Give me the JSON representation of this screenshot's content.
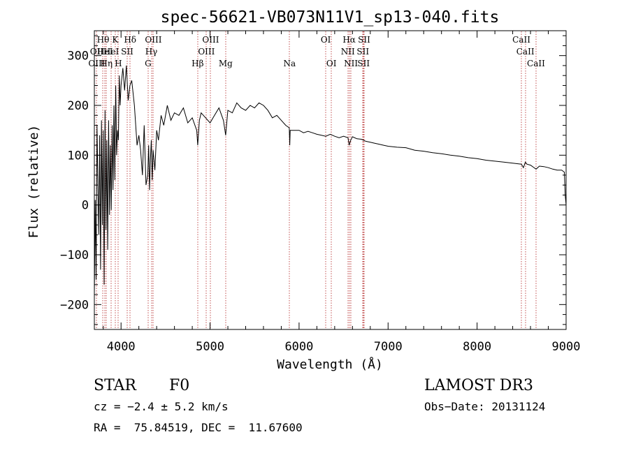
{
  "chart_data": {
    "type": "line",
    "title": "spec-56621-VB073N11V1_sp13-040.fits",
    "xlabel": "Wavelength (Å)",
    "ylabel": "Flux (relative)",
    "xlim": [
      3700,
      9000
    ],
    "ylim": [
      -250,
      350
    ],
    "xticks": [
      {
        "value": 4000,
        "label": "4000"
      },
      {
        "value": 5000,
        "label": "5000"
      },
      {
        "value": 6000,
        "label": "6000"
      },
      {
        "value": 7000,
        "label": "7000"
      },
      {
        "value": 8000,
        "label": "8000"
      },
      {
        "value": 9000,
        "label": "9000"
      }
    ],
    "yticks": [
      {
        "value": -200,
        "label": "−200"
      },
      {
        "value": -100,
        "label": "−100"
      },
      {
        "value": 0,
        "label": "0"
      },
      {
        "value": 100,
        "label": "100"
      },
      {
        "value": 200,
        "label": "200"
      },
      {
        "value": 300,
        "label": "300"
      }
    ],
    "series": [
      {
        "name": "spectrum",
        "x": [
          3700,
          3710,
          3720,
          3730,
          3740,
          3750,
          3760,
          3770,
          3780,
          3790,
          3800,
          3810,
          3820,
          3830,
          3840,
          3850,
          3860,
          3870,
          3880,
          3890,
          3900,
          3910,
          3920,
          3930,
          3940,
          3950,
          3960,
          3970,
          3980,
          3990,
          4000,
          4020,
          4040,
          4060,
          4080,
          4100,
          4120,
          4150,
          4180,
          4200,
          4220,
          4240,
          4260,
          4280,
          4300,
          4310,
          4320,
          4330,
          4340,
          4350,
          4360,
          4380,
          4400,
          4420,
          4450,
          4480,
          4520,
          4560,
          4600,
          4650,
          4700,
          4750,
          4800,
          4850,
          4861,
          4880,
          4900,
          4950,
          5000,
          5050,
          5100,
          5150,
          5175,
          5200,
          5250,
          5300,
          5350,
          5400,
          5450,
          5500,
          5550,
          5600,
          5650,
          5700,
          5750,
          5800,
          5850,
          5890,
          5895,
          5900,
          5950,
          6000,
          6050,
          6100,
          6150,
          6200,
          6250,
          6300,
          6350,
          6400,
          6450,
          6500,
          6550,
          6563,
          6580,
          6600,
          6650,
          6700,
          6750,
          6800,
          6850,
          6900,
          6950,
          7000,
          7100,
          7200,
          7300,
          7400,
          7500,
          7600,
          7700,
          7800,
          7900,
          8000,
          8100,
          8200,
          8300,
          8400,
          8498,
          8520,
          8542,
          8560,
          8600,
          8662,
          8700,
          8750,
          8800,
          8850,
          8900,
          8950,
          8980,
          8990,
          9000
        ],
        "values": [
          -180,
          10,
          -150,
          160,
          40,
          -60,
          140,
          -130,
          170,
          -40,
          150,
          -160,
          190,
          -50,
          130,
          -90,
          170,
          -20,
          120,
          -10,
          160,
          30,
          200,
          50,
          240,
          100,
          150,
          130,
          260,
          200,
          240,
          275,
          230,
          280,
          210,
          240,
          250,
          200,
          120,
          140,
          110,
          60,
          160,
          40,
          60,
          120,
          30,
          90,
          130,
          50,
          110,
          70,
          150,
          130,
          180,
          160,
          200,
          170,
          185,
          180,
          195,
          165,
          175,
          150,
          120,
          170,
          185,
          175,
          165,
          180,
          195,
          170,
          140,
          190,
          185,
          205,
          195,
          190,
          200,
          195,
          205,
          200,
          190,
          175,
          180,
          170,
          160,
          155,
          120,
          150,
          150,
          150,
          145,
          148,
          145,
          142,
          140,
          138,
          142,
          138,
          135,
          138,
          135,
          120,
          130,
          137,
          133,
          132,
          128,
          126,
          124,
          122,
          120,
          118,
          116,
          115,
          110,
          108,
          105,
          103,
          100,
          98,
          95,
          93,
          90,
          88,
          86,
          84,
          82,
          75,
          86,
          82,
          80,
          72,
          78,
          77,
          75,
          72,
          70,
          70,
          66,
          20,
          0
        ]
      }
    ],
    "lines_lower": [
      {
        "name": "OII",
        "x": 3727
      },
      {
        "name": "HeI",
        "x": 3820
      },
      {
        "name": "HeI",
        "x": 3889
      },
      {
        "name": "SII",
        "x": 4069
      },
      {
        "name": "Hγ",
        "x": 4340
      },
      {
        "name": "OIII",
        "x": 4959
      },
      {
        "name": "NII",
        "x": 6548
      },
      {
        "name": "SII",
        "x": 6717
      },
      {
        "name": "CaII",
        "x": 8542
      }
    ],
    "lines_upper": [
      {
        "name": "Hθ",
        "x": 3798
      },
      {
        "name": "K",
        "x": 3934
      },
      {
        "name": "Hδ",
        "x": 4102
      },
      {
        "name": "OIII",
        "x": 4363
      },
      {
        "name": "OIII",
        "x": 5007
      },
      {
        "name": "OI",
        "x": 6300
      },
      {
        "name": "Hα",
        "x": 6563
      },
      {
        "name": "SII",
        "x": 6731
      },
      {
        "name": "CaII",
        "x": 8498
      }
    ],
    "lines_bottom_row": [
      {
        "name": "OIII",
        "x": 3727
      },
      {
        "name": "Hη",
        "x": 3835
      },
      {
        "name": "H",
        "x": 3970
      },
      {
        "name": "G",
        "x": 4304
      },
      {
        "name": "Hβ",
        "x": 4861
      },
      {
        "name": "Mg",
        "x": 5175
      },
      {
        "name": "Na",
        "x": 5893
      },
      {
        "name": "OI",
        "x": 6363
      },
      {
        "name": "NII",
        "x": 6583
      },
      {
        "name": "SII",
        "x": 6725
      },
      {
        "name": "CaII",
        "x": 8662
      }
    ]
  },
  "info": {
    "object_class": "STAR",
    "subclass": "F0",
    "survey": "LAMOST DR3",
    "cz": "cz = −2.4 ± 5.2 km/s",
    "obs_date": "Obs−Date: 20131124",
    "coords": "RA =  75.84519, DEC =  11.67600"
  },
  "colors": {
    "axis": "#000000",
    "spectrum": "#000000",
    "line_marker": "#b22222",
    "background": "#ffffff"
  }
}
